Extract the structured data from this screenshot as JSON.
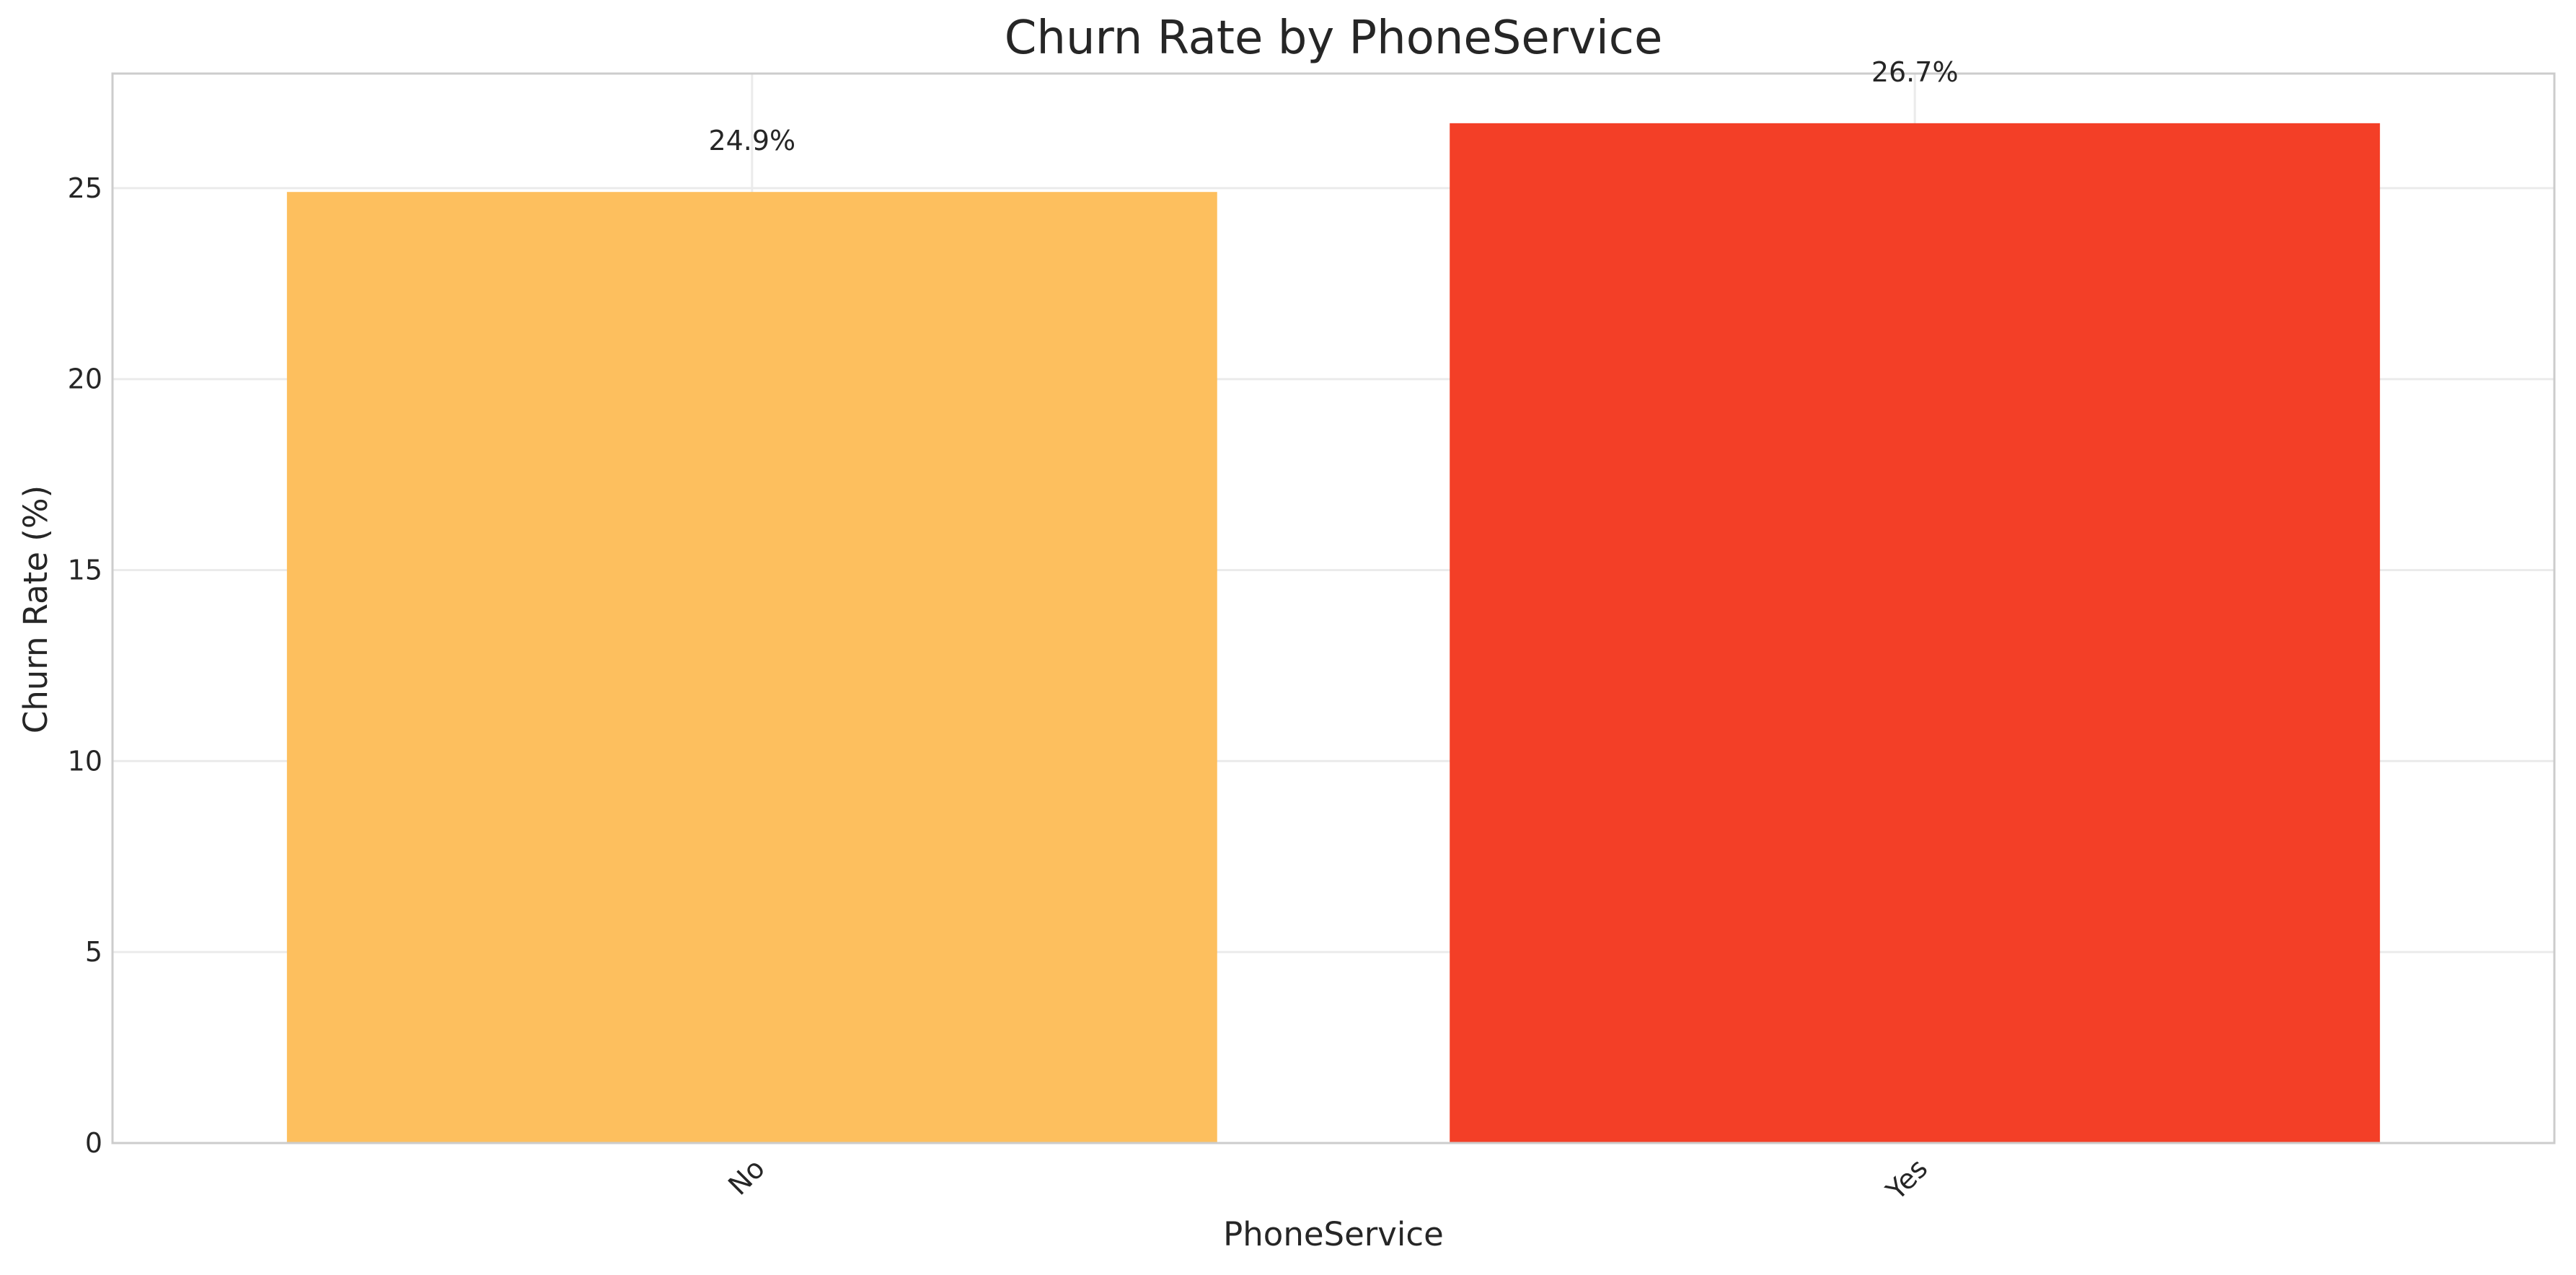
{
  "chart_data": {
    "type": "bar",
    "title": "Churn Rate by PhoneService",
    "xlabel": "PhoneService",
    "ylabel": "Churn Rate (%)",
    "categories": [
      "No",
      "Yes"
    ],
    "values": [
      24.9,
      26.7
    ],
    "data_labels": [
      "24.9%",
      "26.7%"
    ],
    "bar_colors": [
      "#fdbf5e",
      "#f33f27"
    ],
    "ylim": [
      0,
      28
    ],
    "yticks": [
      0,
      5,
      10,
      15,
      20,
      25
    ],
    "xtick_rotation": "45 degrees",
    "grid": true,
    "colors": {
      "grid": "#ebebeb",
      "frame": "#cccccc",
      "text": "#262626"
    }
  }
}
